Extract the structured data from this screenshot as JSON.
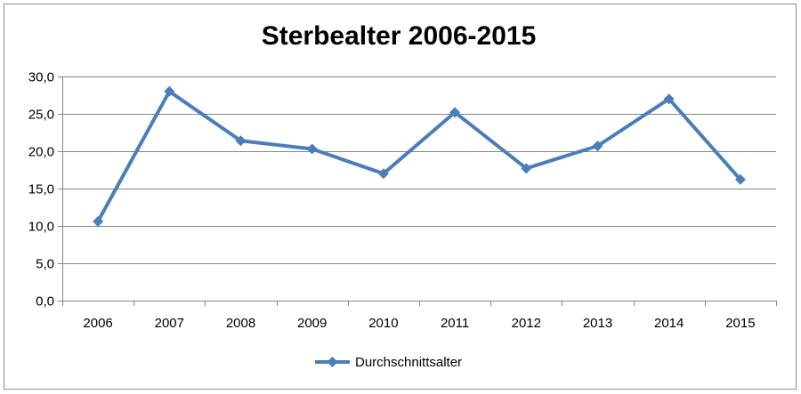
{
  "chart_data": {
    "type": "line",
    "title": "Sterbealter 2006-2015",
    "xlabel": "",
    "ylabel": "",
    "categories": [
      "2006",
      "2007",
      "2008",
      "2009",
      "2010",
      "2011",
      "2012",
      "2013",
      "2014",
      "2015"
    ],
    "series": [
      {
        "name": "Durchschnittsalter",
        "values": [
          10.6,
          28.0,
          21.4,
          20.3,
          17.0,
          25.2,
          17.7,
          20.7,
          27.0,
          16.2
        ],
        "color": "#4a7ebb",
        "marker": "diamond"
      }
    ],
    "ylim": [
      0,
      30
    ],
    "yticks": [
      "0,0",
      "5,0",
      "10,0",
      "15,0",
      "20,0",
      "25,0",
      "30,0"
    ],
    "grid": "horizontal",
    "legend_position": "bottom"
  }
}
